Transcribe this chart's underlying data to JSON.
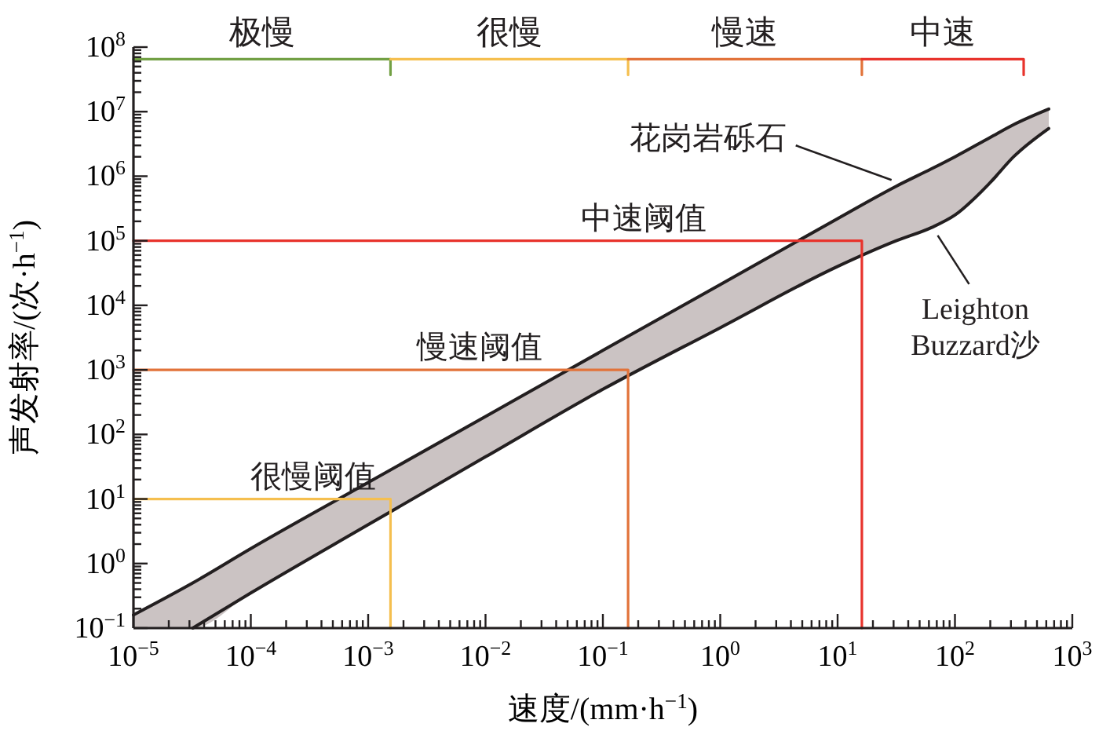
{
  "chart_data": {
    "type": "line",
    "xlabel": "速度/(mm·h$^{−1}$)",
    "ylabel": "声发射率/(次·h$^{−1}$)",
    "log": "xy",
    "grid": false,
    "line_style": "solid",
    "xlim": [
      1e-05,
      1000
    ],
    "ylim": [
      0.1,
      100000000.0
    ],
    "xticks": [
      {
        "value": 1e-05,
        "label": "10$^{−5}$"
      },
      {
        "value": 2e-05,
        "label": null
      },
      {
        "value": 3e-05,
        "label": null
      },
      {
        "value": 4e-05,
        "label": null
      },
      {
        "value": 5e-05,
        "label": null
      },
      {
        "value": 6e-05,
        "label": null
      },
      {
        "value": 7e-05,
        "label": null
      },
      {
        "value": 8e-05,
        "label": null
      },
      {
        "value": 9e-05,
        "label": null
      },
      {
        "value": 0.0001,
        "label": "10$^{−4}$"
      },
      {
        "value": 0.0002,
        "label": null
      },
      {
        "value": 0.0003,
        "label": null
      },
      {
        "value": 0.0004,
        "label": null
      },
      {
        "value": 0.0005,
        "label": null
      },
      {
        "value": 0.0006,
        "label": null
      },
      {
        "value": 0.0007,
        "label": null
      },
      {
        "value": 0.0008,
        "label": null
      },
      {
        "value": 0.0009,
        "label": null
      },
      {
        "value": 0.001,
        "label": "10$^{−3}$"
      },
      {
        "value": 0.002,
        "label": null
      },
      {
        "value": 0.003,
        "label": null
      },
      {
        "value": 0.004,
        "label": null
      },
      {
        "value": 0.005,
        "label": null
      },
      {
        "value": 0.006,
        "label": null
      },
      {
        "value": 0.007,
        "label": null
      },
      {
        "value": 0.008,
        "label": null
      },
      {
        "value": 0.009,
        "label": null
      },
      {
        "value": 0.01,
        "label": "10$^{−2}$"
      },
      {
        "value": 0.02,
        "label": null
      },
      {
        "value": 0.03,
        "label": null
      },
      {
        "value": 0.04,
        "label": null
      },
      {
        "value": 0.05,
        "label": null
      },
      {
        "value": 0.06,
        "label": null
      },
      {
        "value": 0.07,
        "label": null
      },
      {
        "value": 0.08,
        "label": null
      },
      {
        "value": 0.09,
        "label": null
      },
      {
        "value": 0.1,
        "label": "10$^{−1}$"
      },
      {
        "value": 0.2,
        "label": null
      },
      {
        "value": 0.3,
        "label": null
      },
      {
        "value": 0.4,
        "label": null
      },
      {
        "value": 0.5,
        "label": null
      },
      {
        "value": 0.6,
        "label": null
      },
      {
        "value": 0.7,
        "label": null
      },
      {
        "value": 0.8,
        "label": null
      },
      {
        "value": 0.9,
        "label": null
      },
      {
        "value": 1,
        "label": "10$^{0}$"
      },
      {
        "value": 2,
        "label": null
      },
      {
        "value": 3,
        "label": null
      },
      {
        "value": 4,
        "label": null
      },
      {
        "value": 5,
        "label": null
      },
      {
        "value": 6,
        "label": null
      },
      {
        "value": 7,
        "label": null
      },
      {
        "value": 8,
        "label": null
      },
      {
        "value": 9,
        "label": null
      },
      {
        "value": 10,
        "label": "10$^{1}$"
      },
      {
        "value": 20,
        "label": null
      },
      {
        "value": 30,
        "label": null
      },
      {
        "value": 40,
        "label": null
      },
      {
        "value": 50,
        "label": null
      },
      {
        "value": 60,
        "label": null
      },
      {
        "value": 70,
        "label": null
      },
      {
        "value": 80,
        "label": null
      },
      {
        "value": 90,
        "label": null
      },
      {
        "value": 100,
        "label": "10$^{2}$"
      },
      {
        "value": 200,
        "label": null
      },
      {
        "value": 300,
        "label": null
      },
      {
        "value": 400,
        "label": null
      },
      {
        "value": 500,
        "label": null
      },
      {
        "value": 600,
        "label": null
      },
      {
        "value": 700,
        "label": null
      },
      {
        "value": 800,
        "label": null
      },
      {
        "value": 900,
        "label": null
      },
      {
        "value": 1000,
        "label": "10$^{3}$"
      }
    ],
    "yticks": [
      {
        "value": 0.1,
        "label": "10$^{−1}$"
      },
      {
        "value": 0.2,
        "label": null
      },
      {
        "value": 0.3,
        "label": null
      },
      {
        "value": 0.4,
        "label": null
      },
      {
        "value": 0.5,
        "label": null
      },
      {
        "value": 0.6,
        "label": null
      },
      {
        "value": 0.7,
        "label": null
      },
      {
        "value": 0.8,
        "label": null
      },
      {
        "value": 0.9,
        "label": null
      },
      {
        "value": 1,
        "label": "10$^{0}$"
      },
      {
        "value": 2,
        "label": null
      },
      {
        "value": 3,
        "label": null
      },
      {
        "value": 4,
        "label": null
      },
      {
        "value": 5,
        "label": null
      },
      {
        "value": 6,
        "label": null
      },
      {
        "value": 7,
        "label": null
      },
      {
        "value": 8,
        "label": null
      },
      {
        "value": 9,
        "label": null
      },
      {
        "value": 10,
        "label": "10$^{1}$"
      },
      {
        "value": 20,
        "label": null
      },
      {
        "value": 30,
        "label": null
      },
      {
        "value": 40,
        "label": null
      },
      {
        "value": 50,
        "label": null
      },
      {
        "value": 60,
        "label": null
      },
      {
        "value": 70,
        "label": null
      },
      {
        "value": 80,
        "label": null
      },
      {
        "value": 90,
        "label": null
      },
      {
        "value": 100,
        "label": "10$^{2}$"
      },
      {
        "value": 200,
        "label": null
      },
      {
        "value": 300,
        "label": null
      },
      {
        "value": 400,
        "label": null
      },
      {
        "value": 500,
        "label": null
      },
      {
        "value": 600,
        "label": null
      },
      {
        "value": 700,
        "label": null
      },
      {
        "value": 800,
        "label": null
      },
      {
        "value": 900,
        "label": null
      },
      {
        "value": 1000,
        "label": "10$^{3}$"
      },
      {
        "value": 2000,
        "label": null
      },
      {
        "value": 3000,
        "label": null
      },
      {
        "value": 4000,
        "label": null
      },
      {
        "value": 5000,
        "label": null
      },
      {
        "value": 6000,
        "label": null
      },
      {
        "value": 7000,
        "label": null
      },
      {
        "value": 8000,
        "label": null
      },
      {
        "value": 9000,
        "label": null
      },
      {
        "value": 10000,
        "label": "10$^{4}$"
      },
      {
        "value": 20000,
        "label": null
      },
      {
        "value": 30000,
        "label": null
      },
      {
        "value": 40000,
        "label": null
      },
      {
        "value": 50000,
        "label": null
      },
      {
        "value": 60000,
        "label": null
      },
      {
        "value": 70000,
        "label": null
      },
      {
        "value": 80000,
        "label": null
      },
      {
        "value": 90000,
        "label": null
      },
      {
        "value": 100000,
        "label": "10$^{5}$"
      },
      {
        "value": 200000,
        "label": null
      },
      {
        "value": 300000,
        "label": null
      },
      {
        "value": 400000,
        "label": null
      },
      {
        "value": 500000,
        "label": null
      },
      {
        "value": 600000,
        "label": null
      },
      {
        "value": 700000,
        "label": null
      },
      {
        "value": 800000,
        "label": null
      },
      {
        "value": 900000,
        "label": null
      },
      {
        "value": 1000000,
        "label": "10$^{6}$"
      },
      {
        "value": 2000000,
        "label": null
      },
      {
        "value": 3000000,
        "label": null
      },
      {
        "value": 4000000,
        "label": null
      },
      {
        "value": 5000000,
        "label": null
      },
      {
        "value": 6000000,
        "label": null
      },
      {
        "value": 7000000,
        "label": null
      },
      {
        "value": 8000000,
        "label": null
      },
      {
        "value": 9000000,
        "label": null
      },
      {
        "value": 10000000,
        "label": "10$^{7}$"
      },
      {
        "value": 20000000,
        "label": null
      },
      {
        "value": 30000000,
        "label": null
      },
      {
        "value": 40000000,
        "label": null
      },
      {
        "value": 50000000,
        "label": null
      },
      {
        "value": 60000000,
        "label": null
      },
      {
        "value": 70000000,
        "label": null
      },
      {
        "value": 80000000,
        "label": null
      },
      {
        "value": 90000000,
        "label": null
      },
      {
        "value": 100000000,
        "label": "10$^{8}$"
      }
    ],
    "series": [
      {
        "name": "花岗岩砾石",
        "color": "#231f20",
        "x": [
          1e-05,
          3.2e-05,
          0.0001,
          0.001,
          0.01,
          0.1,
          1,
          10,
          31.6,
          63,
          100,
          200,
          316,
          630
        ],
        "values": [
          0.16,
          0.5,
          1.7,
          18,
          190,
          2000,
          21000,
          220000,
          700000,
          1300000,
          2000000,
          4000000,
          6300000,
          11000000
        ],
        "lower": [
          0.1,
          0.1,
          0.35,
          4,
          45,
          500,
          4500,
          40000,
          100000,
          160000,
          250000,
          800000,
          2000000,
          5500000
        ],
        "upper": [
          0.16,
          0.5,
          1.7,
          18,
          190,
          2000,
          21000,
          220000,
          700000,
          1300000,
          2000000,
          4000000,
          6300000,
          11000000
        ]
      },
      {
        "name": "Leighton Buzzard沙",
        "color": "#231f20",
        "x": [
          3.2e-05,
          0.0001,
          0.001,
          0.01,
          0.1,
          1,
          10,
          31.6,
          63,
          100,
          200,
          316,
          630
        ],
        "values": [
          0.1,
          0.35,
          4,
          45,
          500,
          4500,
          40000,
          100000,
          160000,
          250000,
          800000,
          2000000,
          5500000
        ]
      },
      {
        "name": "很慢阈值",
        "color": "#f5bf4f",
        "x": [
          1e-05,
          0.00155,
          0.00155
        ],
        "values": [
          10,
          10,
          0.1
        ]
      },
      {
        "name": "慢速阈值",
        "color": "#e2733a",
        "x": [
          1e-05,
          0.164,
          0.164
        ],
        "values": [
          1000,
          1000,
          0.1
        ]
      },
      {
        "name": "中速阈值",
        "color": "#e8332c",
        "x": [
          1e-05,
          16.1,
          16.1
        ],
        "values": [
          100000,
          100000,
          0.1
        ]
      },
      {
        "color": "#72a044",
        "x": [
          1e-05,
          0.00155,
          0.00155
        ],
        "values": [
          65000000,
          65000000,
          37000000
        ]
      },
      {
        "color": "#f5bf4f",
        "x": [
          0.00155,
          0.164,
          0.164
        ],
        "values": [
          65000000,
          65000000,
          37000000
        ]
      },
      {
        "color": "#e2733a",
        "x": [
          0.164,
          16.1,
          16.1
        ],
        "values": [
          65000000,
          65000000,
          37000000
        ]
      },
      {
        "color": "#e8332c",
        "x": [
          16.1,
          385,
          385
        ],
        "values": [
          65000000,
          65000000,
          37000000
        ]
      }
    ],
    "annotations": [
      "极慢",
      "很慢",
      "慢速",
      "中速"
    ]
  }
}
